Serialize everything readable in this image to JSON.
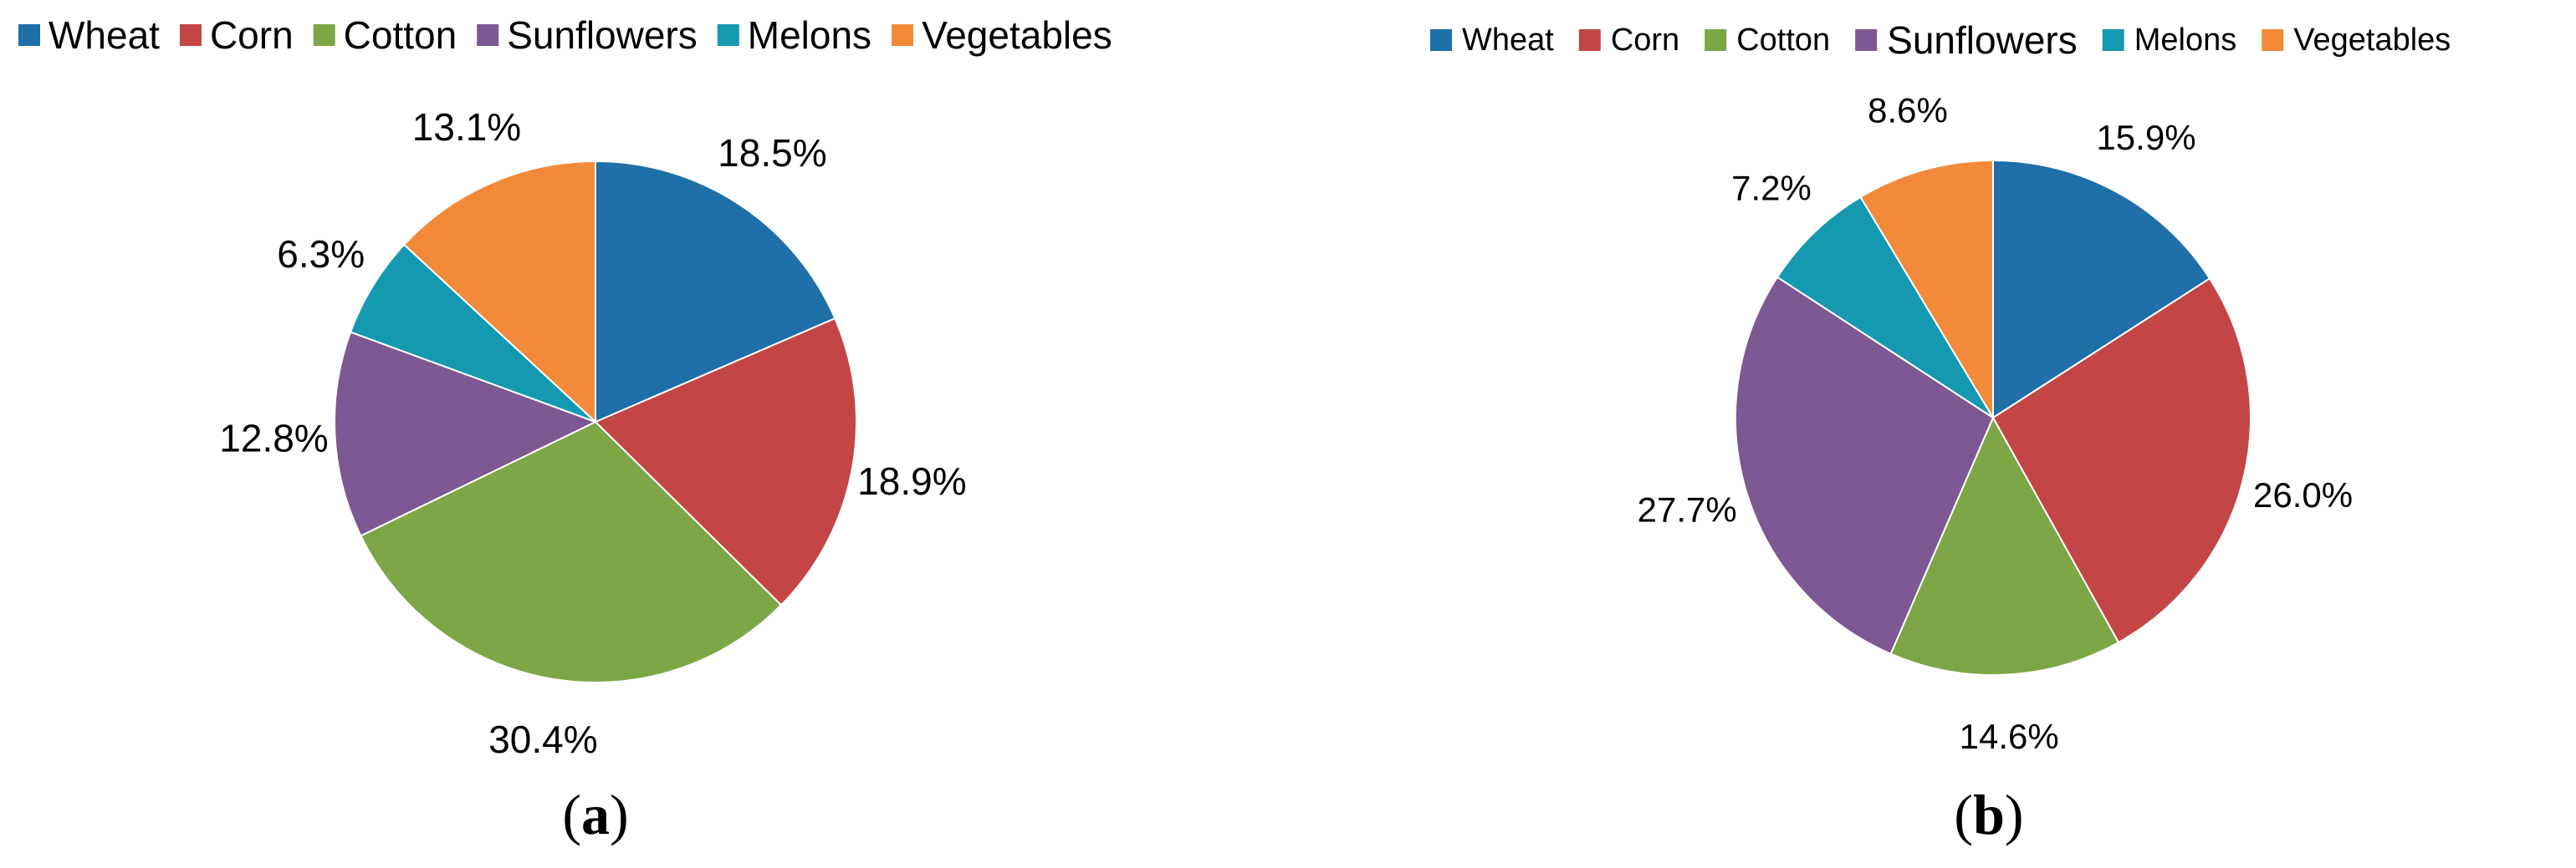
{
  "chart_data": [
    {
      "type": "pie",
      "panel_label": "a",
      "categories": [
        "Wheat",
        "Corn",
        "Cotton",
        "Sunflowers",
        "Melons",
        "Vegetables"
      ],
      "values": [
        18.5,
        18.9,
        30.4,
        12.8,
        6.3,
        13.1
      ],
      "value_labels": [
        "18.5%",
        "18.9%",
        "30.4%",
        "12.8%",
        "6.3%",
        "13.1%"
      ],
      "colors": [
        "#1F6FA8",
        "#C44545",
        "#7DA646",
        "#7D5893",
        "#1499B0",
        "#F28A3A"
      ],
      "legend_position": "top"
    },
    {
      "type": "pie",
      "panel_label": "b",
      "categories": [
        "Wheat",
        "Corn",
        "Cotton",
        "Sunflowers",
        "Melons",
        "Vegetables"
      ],
      "values": [
        15.9,
        26.0,
        14.6,
        27.7,
        7.2,
        8.6
      ],
      "value_labels": [
        "15.9%",
        "26.0%",
        "14.6%",
        "27.7%",
        "7.2%",
        "8.6%"
      ],
      "colors": [
        "#1F6FA8",
        "#C44545",
        "#7DA646",
        "#7D5893",
        "#1499B0",
        "#F28A3A"
      ],
      "legend_position": "top"
    }
  ]
}
